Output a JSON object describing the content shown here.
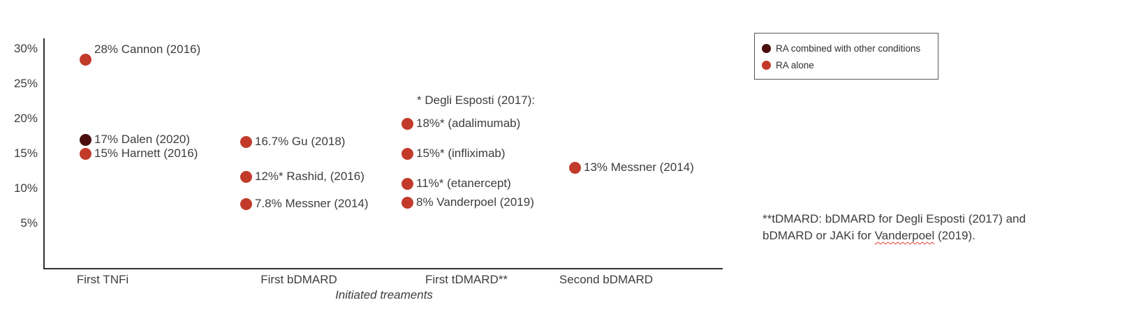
{
  "colors": {
    "ra_combined": "#4a0e0e",
    "ra_alone": "#c23b2a",
    "axis": "#2f2f2f",
    "text": "#3d3d3d",
    "squiggle": "#e03c31"
  },
  "legend": {
    "items": [
      {
        "label": "RA combined with other conditions",
        "series": "ra_combined"
      },
      {
        "label": "RA alone",
        "series": "ra_alone"
      }
    ]
  },
  "footnote": {
    "before": "**tDMARD: bDMARD for Degli Esposti (2017) and bDMARD or JAKi for ",
    "word": "Vanderpoel",
    "after": " (2019)."
  },
  "chart_data": {
    "type": "scatter",
    "title": "",
    "xlabel": "Initiated treaments",
    "ylabel": "",
    "categories": [
      "First TNFi",
      "First bDMARD",
      "First tDMARD**",
      "Second bDMARD"
    ],
    "y_axis": {
      "ticks": [
        30,
        25,
        20,
        15,
        10,
        5
      ],
      "tick_suffix": "%",
      "ylim": [
        0,
        32
      ]
    },
    "grid": false,
    "legend_position": "outside-top-right",
    "annotation": "* Degli Esposti (2017):",
    "series": [
      {
        "name": "RA combined with other conditions",
        "color": "#4a0e0e",
        "points": [
          {
            "category": "First TNFi",
            "cat_index": 0,
            "value": 17,
            "label": "17% Dalen (2020)"
          }
        ]
      },
      {
        "name": "RA alone",
        "color": "#c23b2a",
        "points": [
          {
            "category": "First TNFi",
            "cat_index": 0,
            "value": 28,
            "plot_value": 28.5,
            "label": "28% Cannon (2016)",
            "label_dy": -14
          },
          {
            "category": "First TNFi",
            "cat_index": 0,
            "value": 15,
            "label": "15% Harnett (2016)"
          },
          {
            "category": "First bDMARD",
            "cat_index": 1,
            "value": 16.7,
            "label": "16.7% Gu (2018)"
          },
          {
            "category": "First bDMARD",
            "cat_index": 1,
            "value": 12,
            "plot_value": 11.7,
            "label": "12%* Rashid, (2016)"
          },
          {
            "category": "First bDMARD",
            "cat_index": 1,
            "value": 7.8,
            "label": "7.8% Messner (2014)"
          },
          {
            "category": "First tDMARD**",
            "cat_index": 2,
            "value": 18,
            "plot_value": 19.3,
            "label": "18%* (adalimumab)"
          },
          {
            "category": "First tDMARD**",
            "cat_index": 2,
            "value": 15,
            "label": "15%* (infliximab)"
          },
          {
            "category": "First tDMARD**",
            "cat_index": 2,
            "value": 11,
            "plot_value": 10.7,
            "label": "11%* (etanercept)"
          },
          {
            "category": "First tDMARD**",
            "cat_index": 2,
            "value": 8,
            "label": "8% Vanderpoel (2019)"
          },
          {
            "category": "Second bDMARD",
            "cat_index": 3,
            "value": 13,
            "label": "13% Messner (2014)"
          }
        ]
      }
    ]
  }
}
